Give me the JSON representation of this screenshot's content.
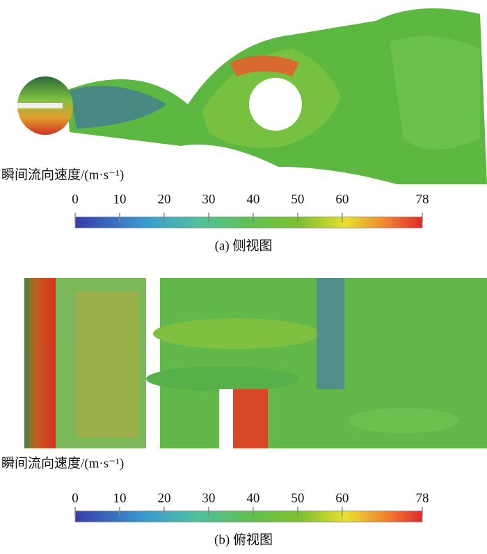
{
  "panels": [
    {
      "colorbar": {
        "label": "瞬间流向速度/(m·s⁻¹)",
        "lim": [
          0,
          78
        ],
        "ticks": [
          0,
          10,
          20,
          30,
          40,
          50,
          60,
          78
        ]
      },
      "caption": "(a) 侧视图"
    },
    {
      "colorbar": {
        "label": "瞬间流向速度/(m·s⁻¹)",
        "lim": [
          0,
          78
        ],
        "ticks": [
          0,
          10,
          20,
          30,
          40,
          50,
          60,
          78
        ]
      },
      "caption": "(b) 俯视图"
    }
  ]
}
